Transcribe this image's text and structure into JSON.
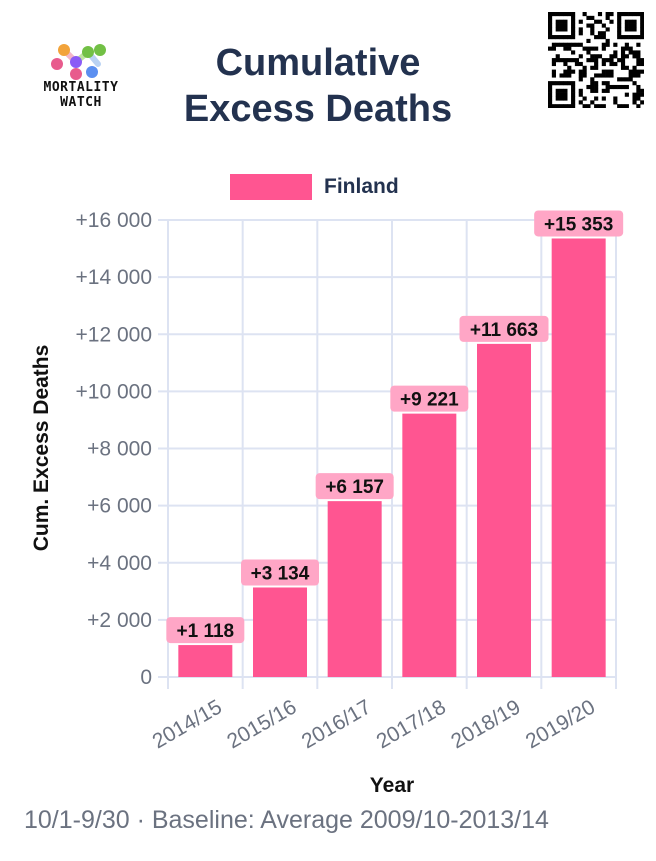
{
  "header": {
    "logo_text_line1": "MORTALITY",
    "logo_text_line2": "WATCH",
    "title_line1": "Cumulative",
    "title_line2": "Excess Deaths"
  },
  "footer": {
    "text": "10/1-9/30 · Baseline: Average 2009/10-2013/14"
  },
  "colors": {
    "bar": "#ff5591",
    "label_bg": "#ffa6c6",
    "title": "#23324f",
    "grid": "#dde3f2"
  },
  "chart_data": {
    "type": "bar",
    "title": "Cumulative Excess Deaths",
    "xlabel": "Year",
    "ylabel": "Cum. Excess Deaths",
    "categories": [
      "2014/15",
      "2015/16",
      "2016/17",
      "2017/18",
      "2018/19",
      "2019/20"
    ],
    "series": [
      {
        "name": "Finland",
        "values": [
          1118,
          3134,
          6157,
          9221,
          11663,
          15353
        ],
        "labels": [
          "+1 118",
          "+3 134",
          "+6 157",
          "+9 221",
          "+11 663",
          "+15 353"
        ]
      }
    ],
    "yticks": [
      0,
      2000,
      4000,
      6000,
      8000,
      10000,
      12000,
      14000,
      16000
    ],
    "ytick_labels": [
      "0",
      "+2 000",
      "+4 000",
      "+6 000",
      "+8 000",
      "+10 000",
      "+12 000",
      "+14 000",
      "+16 000"
    ],
    "ylim": [
      0,
      16000
    ],
    "grid": true,
    "legend": "top-center"
  }
}
